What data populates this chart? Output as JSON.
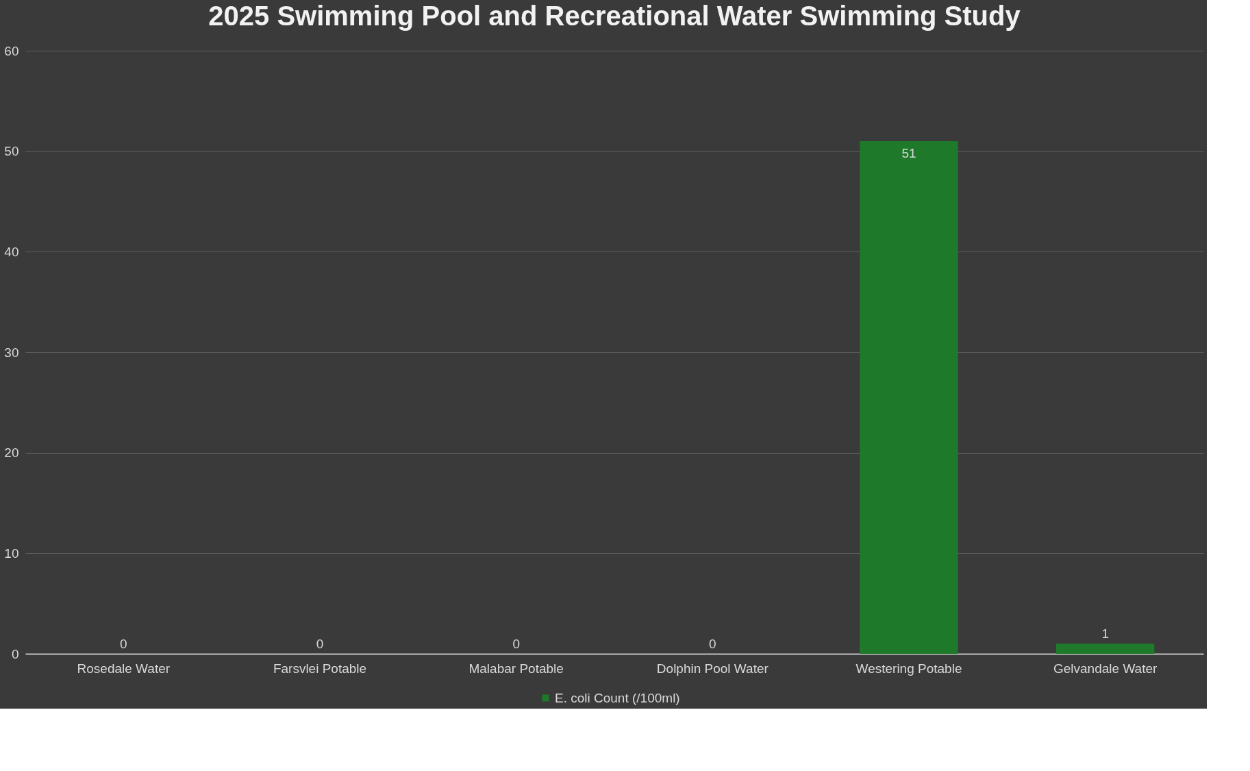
{
  "chart_data": {
    "type": "bar",
    "title": "2025 Swimming Pool and Recreational Water Swimming Study",
    "categories": [
      "Rosedale Water",
      "Farsvlei Potable",
      "Malabar Potable",
      "Dolphin Pool Water",
      "Westering Potable",
      "Gelvandale Water"
    ],
    "series": [
      {
        "name": "E. coli Count (/100ml)",
        "color": "#1e7a2a",
        "values": [
          0,
          0,
          0,
          0,
          51,
          1
        ]
      }
    ],
    "ylim": [
      0,
      60
    ],
    "yticks": [
      0,
      10,
      20,
      30,
      40,
      50,
      60
    ],
    "grid": "y",
    "legend": "bottom",
    "data_labels": true
  }
}
